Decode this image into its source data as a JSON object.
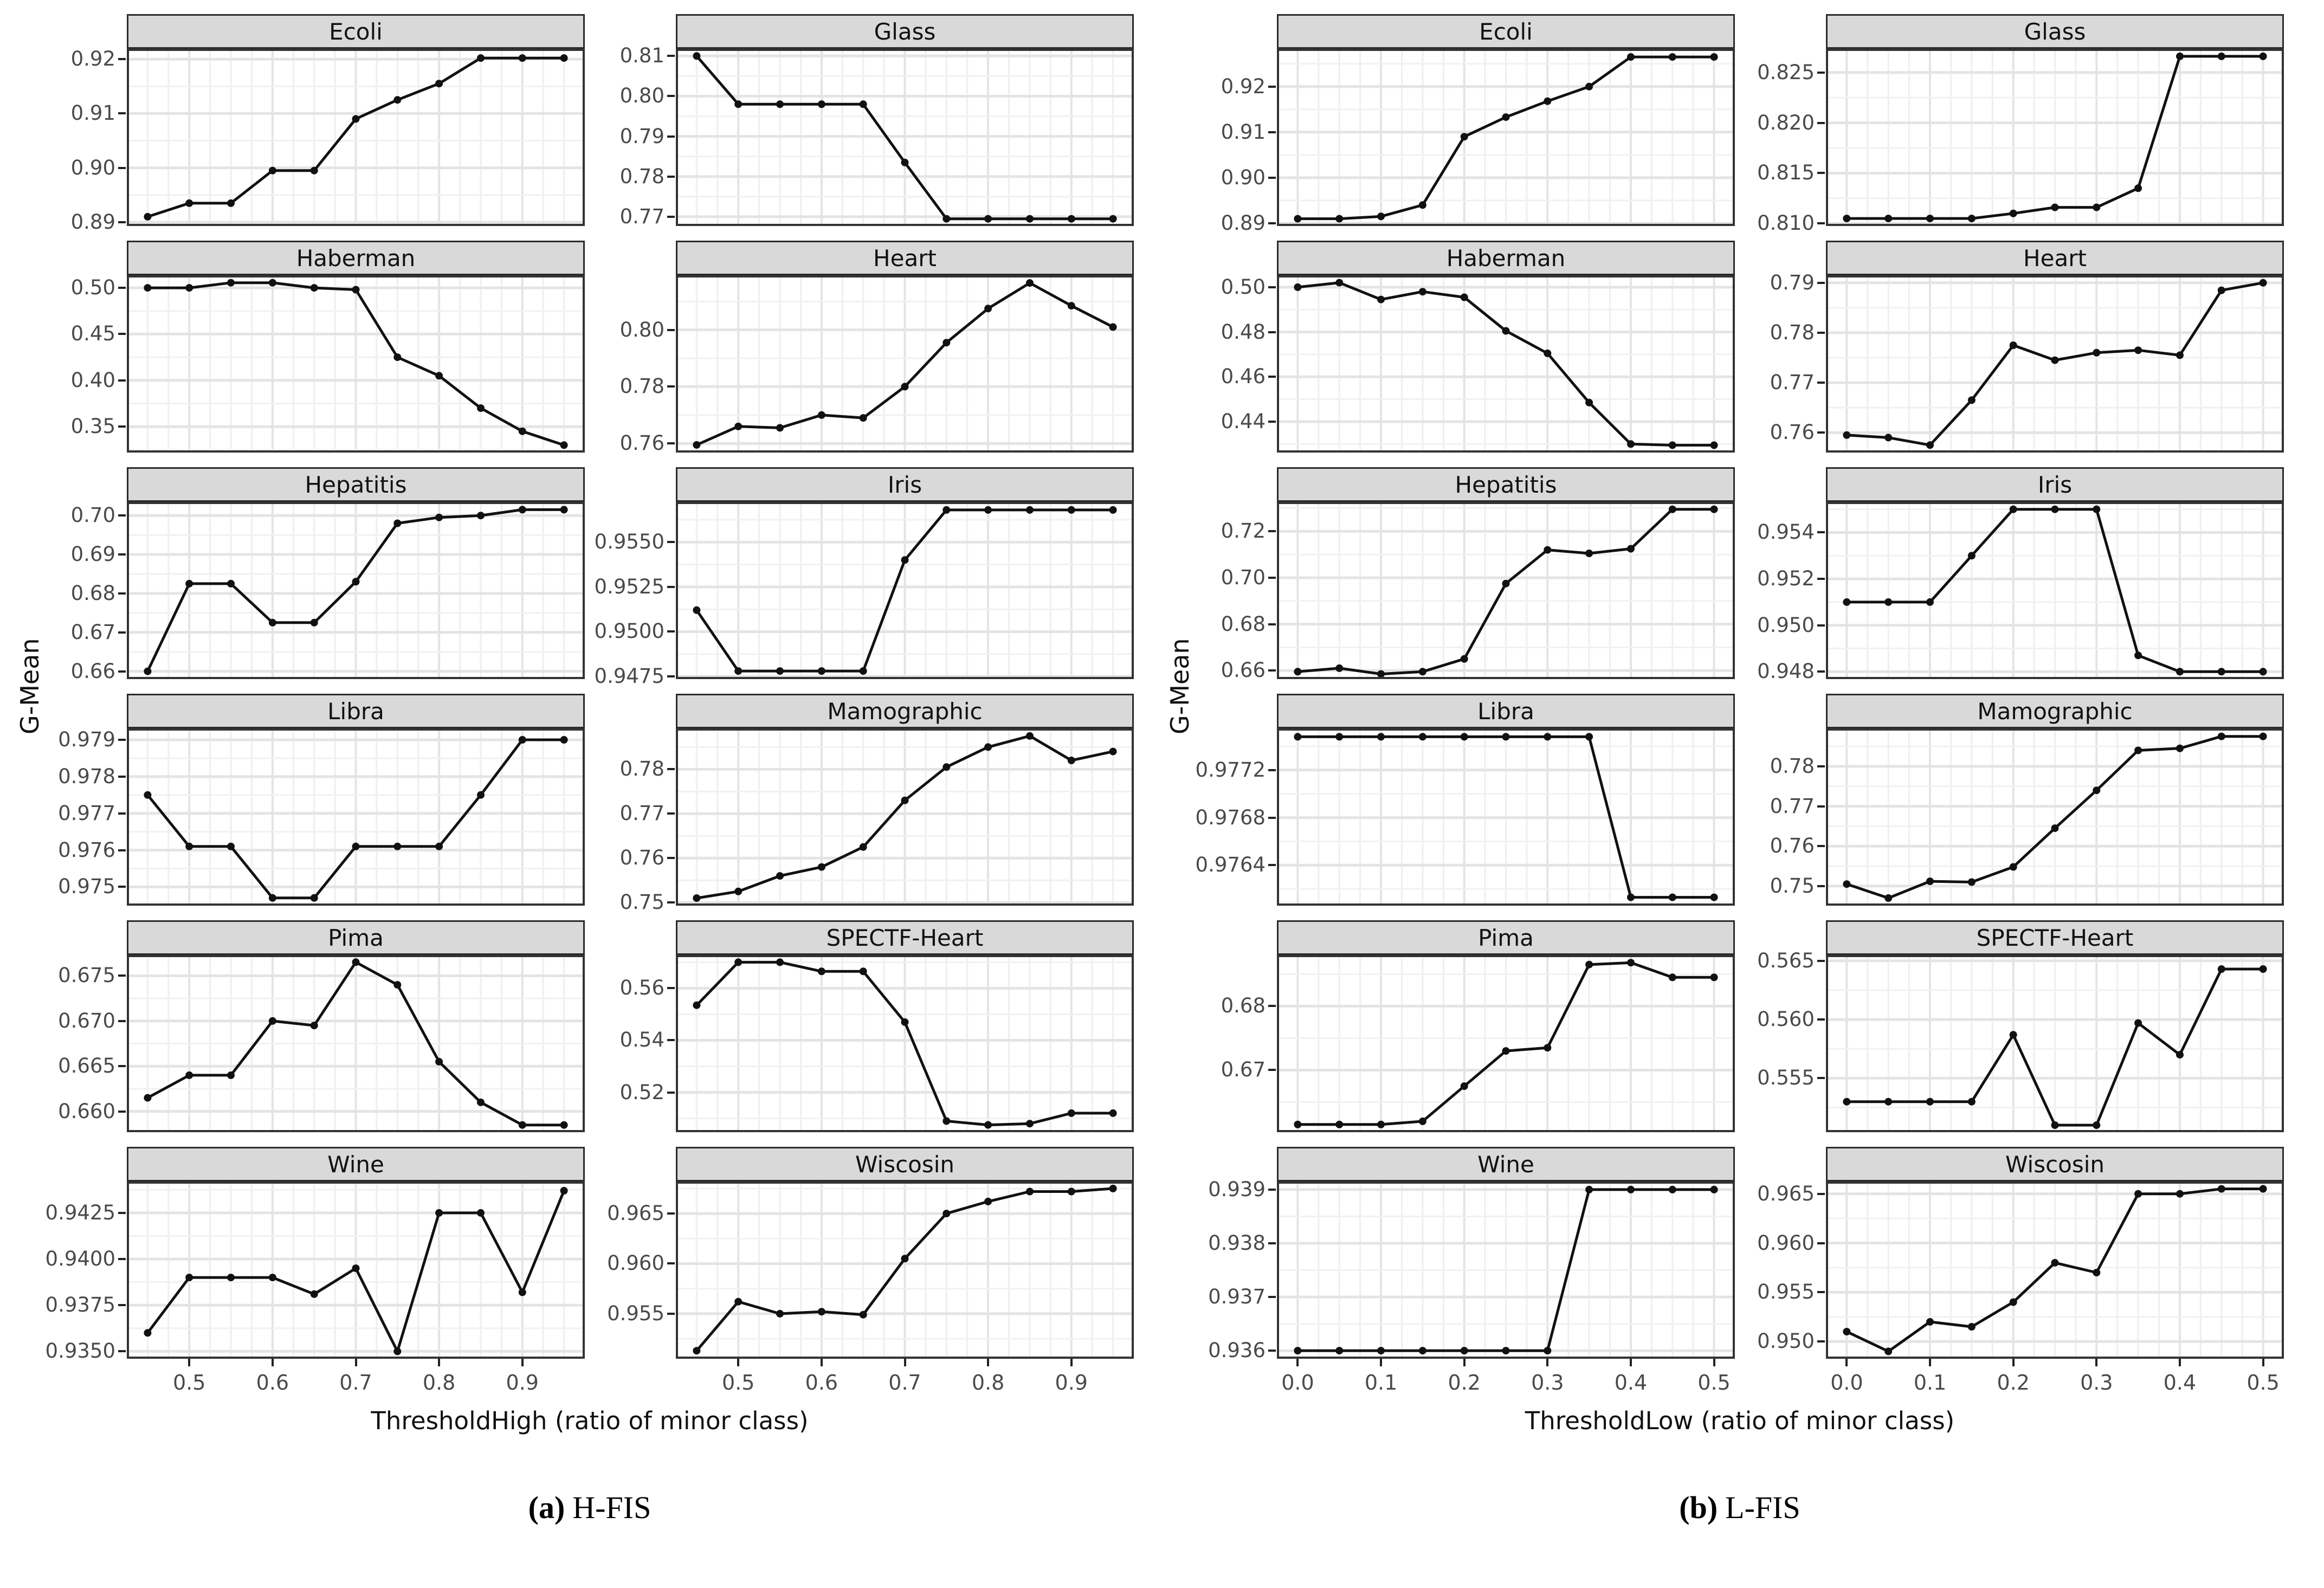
{
  "chart_data": [
    {
      "type": "line",
      "panel_id": "a",
      "caption_marker": "(a)",
      "caption_label": "H-FIS",
      "xlabel": "ThresholdHigh (ratio of minor class)",
      "ylabel": "G-Mean",
      "legend": "none",
      "grid": true,
      "x": [
        0.45,
        0.5,
        0.55,
        0.6,
        0.65,
        0.7,
        0.75,
        0.8,
        0.85,
        0.9,
        0.95
      ],
      "xlim": [
        0.425,
        0.975
      ],
      "xticks": [
        0.5,
        0.6,
        0.7,
        0.8,
        0.9
      ],
      "xtick_labels": [
        "0.5",
        "0.6",
        "0.7",
        "0.8",
        "0.9"
      ],
      "facets": [
        {
          "title": "Ecoli",
          "values": [
            0.891,
            0.8935,
            0.8935,
            0.8995,
            0.8995,
            0.909,
            0.9125,
            0.9155,
            0.9202,
            0.9202,
            0.9202
          ],
          "yticks": [
            0.89,
            0.9,
            0.91,
            0.92
          ],
          "ytick_labels": [
            "0.89",
            "0.90",
            "0.91",
            "0.92"
          ],
          "ylim": [
            0.8893,
            0.9219
          ]
        },
        {
          "title": "Glass",
          "values": [
            0.81,
            0.798,
            0.798,
            0.798,
            0.798,
            0.7835,
            0.7695,
            0.7695,
            0.7695,
            0.7695,
            0.7695
          ],
          "yticks": [
            0.77,
            0.78,
            0.79,
            0.8,
            0.81
          ],
          "ytick_labels": [
            "0.77",
            "0.78",
            "0.79",
            "0.80",
            "0.81"
          ],
          "ylim": [
            0.7677,
            0.8118
          ]
        },
        {
          "title": "Haberman",
          "values": [
            0.5,
            0.5,
            0.5055,
            0.5055,
            0.5,
            0.498,
            0.425,
            0.405,
            0.37,
            0.345,
            0.33
          ],
          "yticks": [
            0.35,
            0.4,
            0.45,
            0.5
          ],
          "ytick_labels": [
            "0.35",
            "0.40",
            "0.45",
            "0.50"
          ],
          "ylim": [
            0.322,
            0.5135
          ]
        },
        {
          "title": "Heart",
          "values": [
            0.7595,
            0.766,
            0.7655,
            0.77,
            0.769,
            0.78,
            0.7955,
            0.8075,
            0.8165,
            0.8085,
            0.801
          ],
          "yticks": [
            0.76,
            0.78,
            0.8
          ],
          "ytick_labels": [
            "0.76",
            "0.78",
            "0.80"
          ],
          "ylim": [
            0.7568,
            0.8192
          ]
        },
        {
          "title": "Hepatitis",
          "values": [
            0.66,
            0.6825,
            0.6825,
            0.6725,
            0.6725,
            0.683,
            0.698,
            0.6995,
            0.7,
            0.7015,
            0.7015
          ],
          "yticks": [
            0.66,
            0.67,
            0.68,
            0.69,
            0.7
          ],
          "ytick_labels": [
            "0.66",
            "0.67",
            "0.68",
            "0.69",
            "0.70"
          ],
          "ylim": [
            0.658,
            0.7035
          ]
        },
        {
          "title": "Iris",
          "values": [
            0.9512,
            0.9478,
            0.9478,
            0.9478,
            0.9478,
            0.954,
            0.9568,
            0.9568,
            0.9568,
            0.9568,
            0.9568
          ],
          "yticks": [
            0.9475,
            0.95,
            0.9525,
            0.955
          ],
          "ytick_labels": [
            "0.9475",
            "0.9500",
            "0.9525",
            "0.9550"
          ],
          "ylim": [
            0.94735,
            0.95725
          ]
        },
        {
          "title": "Libra",
          "values": [
            0.9775,
            0.9761,
            0.9761,
            0.9747,
            0.9747,
            0.9761,
            0.9761,
            0.9761,
            0.9775,
            0.979,
            0.979
          ],
          "yticks": [
            0.975,
            0.976,
            0.977,
            0.978,
            0.979
          ],
          "ytick_labels": [
            "0.975",
            "0.976",
            "0.977",
            "0.978",
            "0.979"
          ],
          "ylim": [
            0.97449,
            0.97931
          ]
        },
        {
          "title": "Mamographic",
          "values": [
            0.751,
            0.7525,
            0.756,
            0.758,
            0.7625,
            0.773,
            0.7805,
            0.785,
            0.7875,
            0.782,
            0.784
          ],
          "yticks": [
            0.75,
            0.76,
            0.77,
            0.78
          ],
          "ytick_labels": [
            "0.75",
            "0.76",
            "0.77",
            "0.78"
          ],
          "ylim": [
            0.7493,
            0.7892
          ]
        },
        {
          "title": "Pima",
          "values": [
            0.6615,
            0.664,
            0.664,
            0.67,
            0.6695,
            0.6765,
            0.674,
            0.6655,
            0.661,
            0.6585,
            0.6585
          ],
          "yticks": [
            0.66,
            0.665,
            0.67,
            0.675
          ],
          "ytick_labels": [
            "0.660",
            "0.665",
            "0.670",
            "0.675"
          ],
          "ylim": [
            0.6577,
            0.6773
          ]
        },
        {
          "title": "SPECTF-Heart",
          "values": [
            0.5535,
            0.57,
            0.57,
            0.5665,
            0.5665,
            0.547,
            0.509,
            0.5075,
            0.508,
            0.512,
            0.512
          ],
          "yticks": [
            0.52,
            0.54,
            0.56
          ],
          "ytick_labels": [
            "0.52",
            "0.54",
            "0.56"
          ],
          "ylim": [
            0.5047,
            0.5728
          ]
        },
        {
          "title": "Wine",
          "values": [
            0.936,
            0.939,
            0.939,
            0.939,
            0.9381,
            0.9395,
            0.935,
            0.9425,
            0.9425,
            0.9382,
            0.9437
          ],
          "yticks": [
            0.935,
            0.9375,
            0.94,
            0.9425
          ],
          "ytick_labels": [
            "0.9350",
            "0.9375",
            "0.9400",
            "0.9425"
          ],
          "ylim": [
            0.9346,
            0.9442
          ]
        },
        {
          "title": "Wiscosin",
          "values": [
            0.9513,
            0.9562,
            0.955,
            0.9552,
            0.9549,
            0.9605,
            0.965,
            0.9662,
            0.9672,
            0.9672,
            0.9675
          ],
          "yticks": [
            0.955,
            0.96,
            0.965
          ],
          "ytick_labels": [
            "0.955",
            "0.960",
            "0.965"
          ],
          "ylim": [
            0.9505,
            0.9682
          ]
        }
      ]
    },
    {
      "type": "line",
      "panel_id": "b",
      "caption_marker": "(b)",
      "caption_label": "L-FIS",
      "xlabel": "ThresholdLow (ratio of minor class)",
      "ylabel": "G-Mean",
      "legend": "none",
      "grid": true,
      "x": [
        0.0,
        0.05,
        0.1,
        0.15,
        0.2,
        0.25,
        0.3,
        0.35,
        0.4,
        0.45,
        0.5
      ],
      "xlim": [
        -0.025,
        0.525
      ],
      "xticks": [
        0.0,
        0.1,
        0.2,
        0.3,
        0.4,
        0.5
      ],
      "xtick_labels": [
        "0.0",
        "0.1",
        "0.2",
        "0.3",
        "0.4",
        "0.5"
      ],
      "facets": [
        {
          "title": "Ecoli",
          "values": [
            0.891,
            0.891,
            0.8915,
            0.894,
            0.909,
            0.9133,
            0.9168,
            0.92,
            0.9265,
            0.9265,
            0.9265
          ],
          "yticks": [
            0.89,
            0.9,
            0.91,
            0.92
          ],
          "ytick_labels": [
            "0.89",
            "0.90",
            "0.91",
            "0.92"
          ],
          "ylim": [
            0.8894,
            0.9283
          ]
        },
        {
          "title": "Glass",
          "values": [
            0.8105,
            0.8105,
            0.8105,
            0.8105,
            0.811,
            0.8116,
            0.8116,
            0.8135,
            0.8266,
            0.8266,
            0.8266
          ],
          "yticks": [
            0.81,
            0.815,
            0.82,
            0.825
          ],
          "ytick_labels": [
            "0.810",
            "0.815",
            "0.820",
            "0.825"
          ],
          "ylim": [
            0.80975,
            0.82735
          ]
        },
        {
          "title": "Haberman",
          "values": [
            0.5,
            0.502,
            0.4945,
            0.498,
            0.4955,
            0.4805,
            0.4705,
            0.4485,
            0.43,
            0.4295,
            0.4295
          ],
          "yticks": [
            0.44,
            0.46,
            0.48,
            0.5
          ],
          "ytick_labels": [
            "0.44",
            "0.46",
            "0.48",
            "0.50"
          ],
          "ylim": [
            0.4262,
            0.5053
          ]
        },
        {
          "title": "Heart",
          "values": [
            0.7595,
            0.759,
            0.7575,
            0.7665,
            0.7775,
            0.7745,
            0.776,
            0.7765,
            0.7755,
            0.7885,
            0.79
          ],
          "yticks": [
            0.76,
            0.77,
            0.78,
            0.79
          ],
          "ytick_labels": [
            "0.76",
            "0.77",
            "0.78",
            "0.79"
          ],
          "ylim": [
            0.756,
            0.7915
          ]
        },
        {
          "title": "Hepatitis",
          "values": [
            0.6595,
            0.661,
            0.6585,
            0.6595,
            0.665,
            0.6975,
            0.712,
            0.7105,
            0.7125,
            0.7295,
            0.7295
          ],
          "yticks": [
            0.66,
            0.68,
            0.7,
            0.72
          ],
          "ytick_labels": [
            "0.66",
            "0.68",
            "0.70",
            "0.72"
          ],
          "ylim": [
            0.6563,
            0.7327
          ]
        },
        {
          "title": "Iris",
          "values": [
            0.951,
            0.951,
            0.951,
            0.953,
            0.955,
            0.955,
            0.955,
            0.9487,
            0.948,
            0.948,
            0.948
          ],
          "yticks": [
            0.948,
            0.95,
            0.952,
            0.954
          ],
          "ytick_labels": [
            "0.948",
            "0.950",
            "0.952",
            "0.954"
          ],
          "ylim": [
            0.94768,
            0.95532
          ]
        },
        {
          "title": "Libra",
          "values": [
            0.97748,
            0.97748,
            0.97748,
            0.97748,
            0.97748,
            0.97748,
            0.97748,
            0.97748,
            0.97613,
            0.97613,
            0.97613
          ],
          "yticks": [
            0.9764,
            0.9768,
            0.9772
          ],
          "ytick_labels": [
            "0.9764",
            "0.9768",
            "0.9772"
          ],
          "ylim": [
            0.97606,
            0.97755
          ]
        },
        {
          "title": "Mamographic",
          "values": [
            0.7505,
            0.747,
            0.7512,
            0.751,
            0.7548,
            0.7645,
            0.774,
            0.784,
            0.7845,
            0.7875,
            0.7875
          ],
          "yticks": [
            0.75,
            0.76,
            0.77,
            0.78
          ],
          "ytick_labels": [
            "0.75",
            "0.76",
            "0.77",
            "0.78"
          ],
          "ylim": [
            0.7451,
            0.7895
          ]
        },
        {
          "title": "Pima",
          "values": [
            0.6615,
            0.6615,
            0.6615,
            0.662,
            0.6675,
            0.673,
            0.6735,
            0.6865,
            0.6868,
            0.6845,
            0.6845
          ],
          "yticks": [
            0.67,
            0.68
          ],
          "ytick_labels": [
            "0.67",
            "0.68"
          ],
          "ylim": [
            0.6603,
            0.688
          ]
        },
        {
          "title": "SPECTF-Heart",
          "values": [
            0.553,
            0.553,
            0.553,
            0.553,
            0.5587,
            0.551,
            0.551,
            0.5597,
            0.557,
            0.5643,
            0.5643
          ],
          "yticks": [
            0.555,
            0.56,
            0.565
          ],
          "ytick_labels": [
            "0.555",
            "0.560",
            "0.565"
          ],
          "ylim": [
            0.5504,
            0.5655
          ]
        },
        {
          "title": "Wine",
          "values": [
            0.936,
            0.936,
            0.936,
            0.936,
            0.936,
            0.936,
            0.936,
            0.939,
            0.939,
            0.939,
            0.939
          ],
          "yticks": [
            0.936,
            0.937,
            0.938,
            0.939
          ],
          "ytick_labels": [
            "0.936",
            "0.937",
            "0.938",
            "0.939"
          ],
          "ylim": [
            0.93585,
            0.93915
          ]
        },
        {
          "title": "Wiscosin",
          "values": [
            0.951,
            0.949,
            0.952,
            0.9515,
            0.954,
            0.958,
            0.957,
            0.965,
            0.965,
            0.9655,
            0.9655
          ],
          "yticks": [
            0.95,
            0.955,
            0.96,
            0.965
          ],
          "ytick_labels": [
            "0.950",
            "0.955",
            "0.960",
            "0.965"
          ],
          "ylim": [
            0.94825,
            0.96625
          ]
        }
      ]
    }
  ]
}
